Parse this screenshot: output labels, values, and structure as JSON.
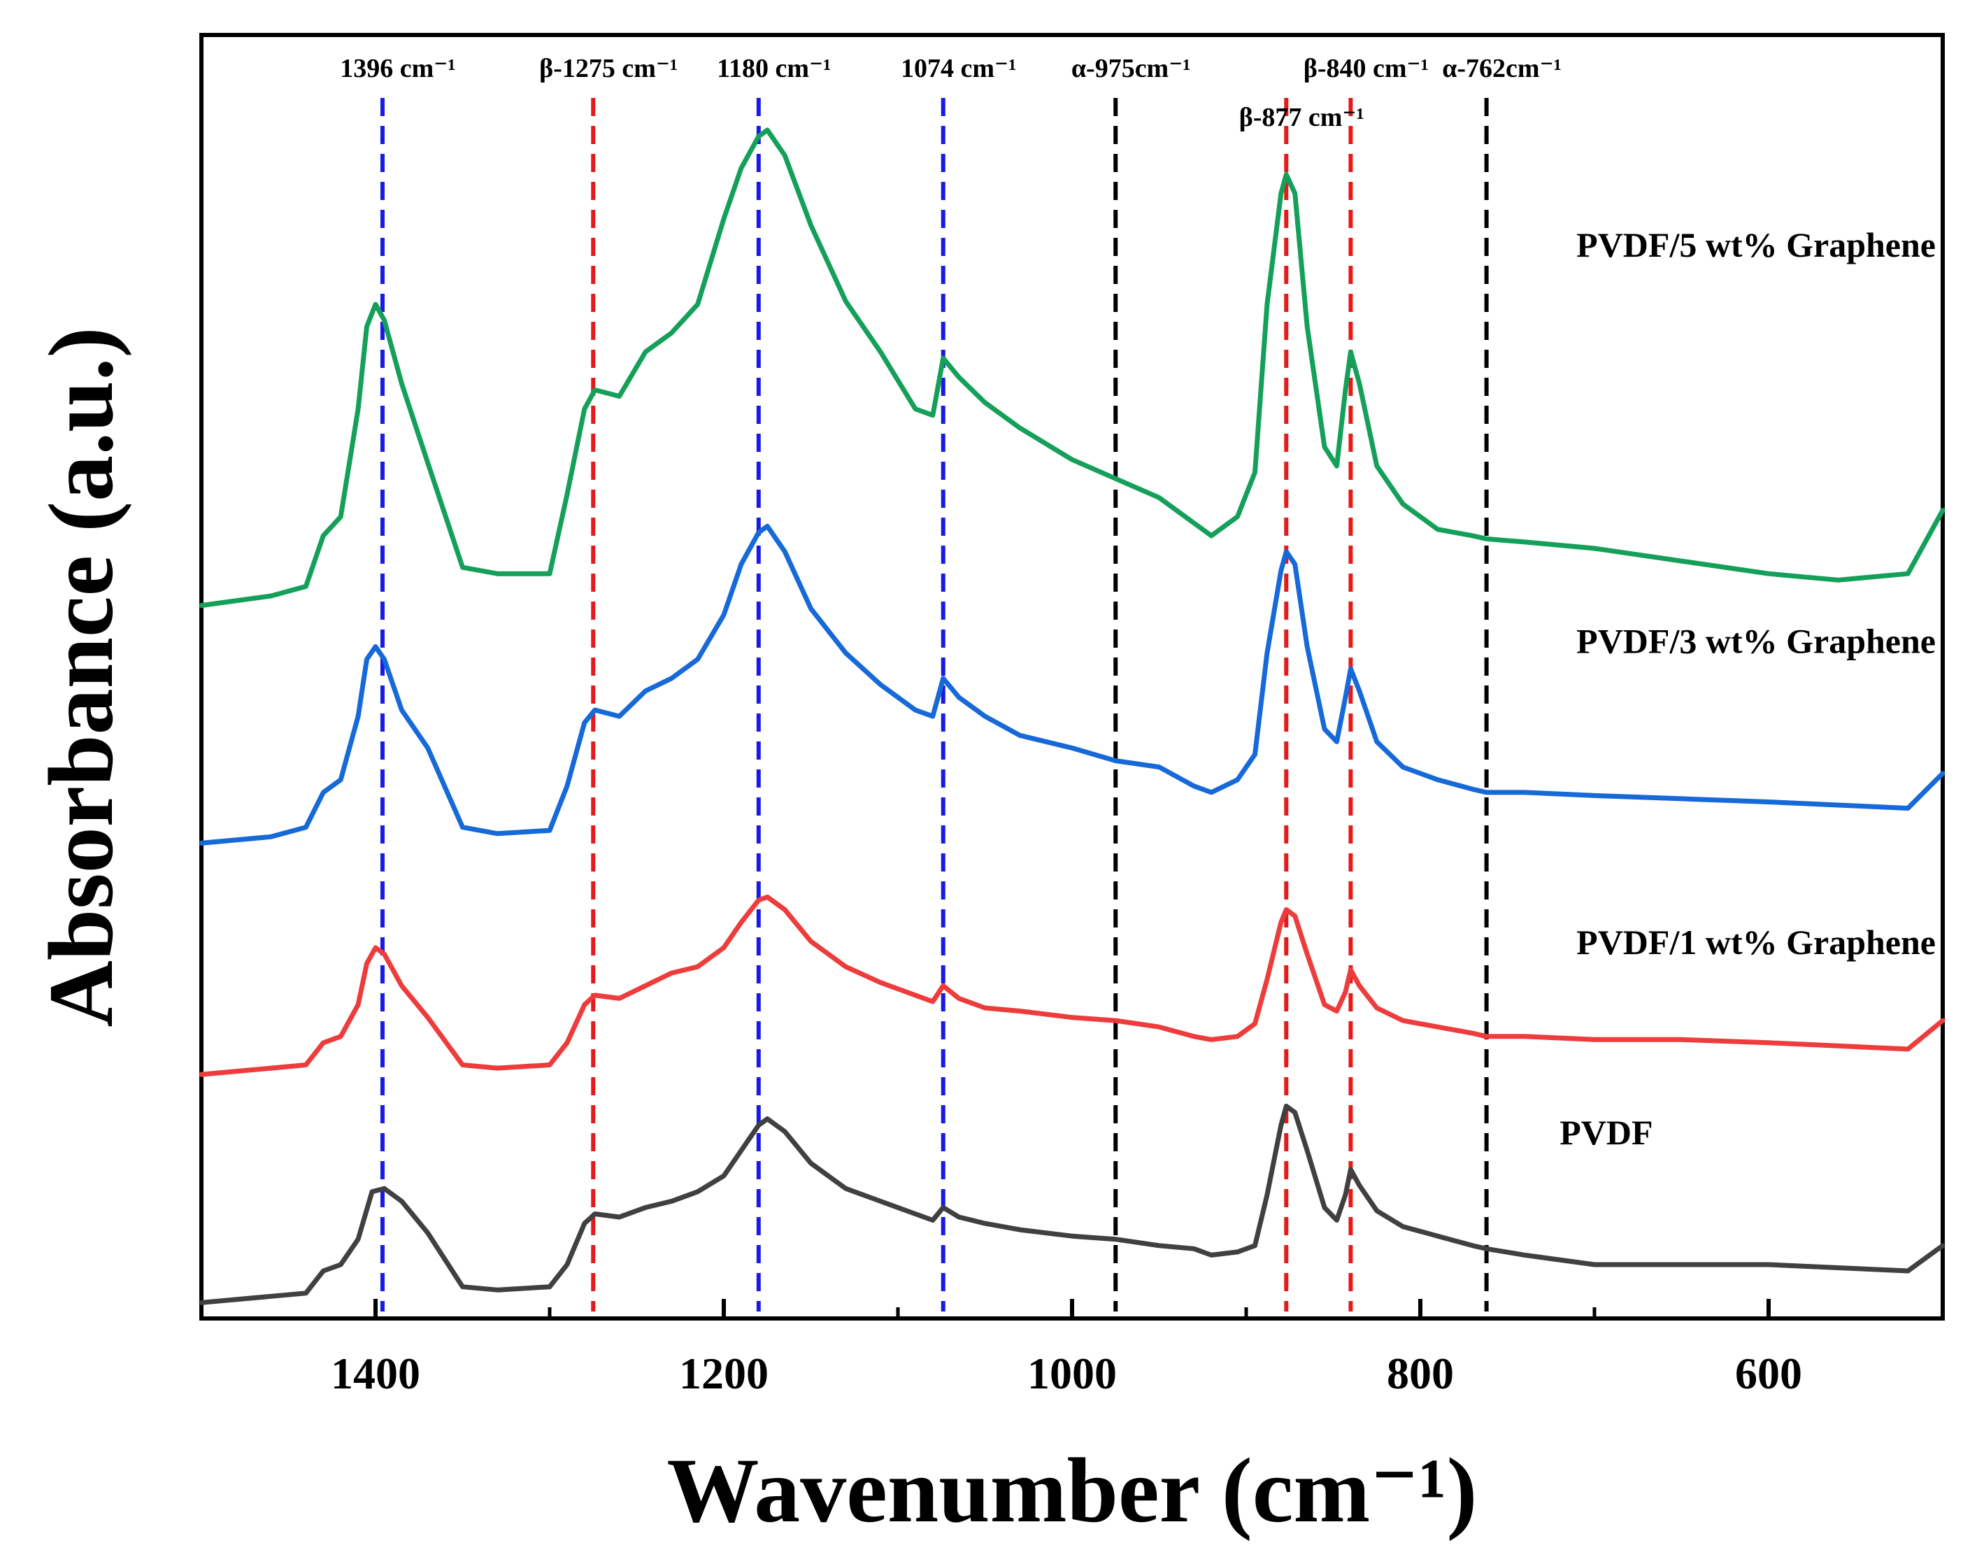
{
  "chart_data": {
    "type": "line",
    "xlabel": "Wavenumber (cm⁻¹)",
    "ylabel": "Absorbance (a.u.)",
    "xlim": [
      1500,
      500
    ],
    "x_reversed": true,
    "ylim": [
      -0.05,
      4.0
    ],
    "y_ticks_visible": false,
    "grid": false,
    "x_ticks": [
      1400,
      1200,
      1000,
      800,
      600
    ],
    "x_tick_labels": [
      "1400",
      "1200",
      "1000",
      "800",
      "600"
    ],
    "colors": {
      "PVDF": "#404040",
      "PVDF/1 wt% Graphene": "#ee3c3c",
      "PVDF/3 wt% Graphene": "#1669d8",
      "PVDF/5 wt% Graphene": "#15a05a",
      "blue_ref": "#1a1ae6",
      "red_ref": "#e61a1a",
      "black_ref": "#000000"
    },
    "series": [
      {
        "name": "PVDF",
        "color": "#404040",
        "x": [
          1500,
          1460,
          1440,
          1430,
          1420,
          1410,
          1402,
          1395,
          1385,
          1370,
          1350,
          1330,
          1300,
          1290,
          1280,
          1274,
          1260,
          1245,
          1230,
          1215,
          1200,
          1190,
          1180,
          1175,
          1165,
          1150,
          1130,
          1110,
          1090,
          1080,
          1074,
          1065,
          1050,
          1030,
          1000,
          975,
          950,
          930,
          920,
          905,
          895,
          888,
          880,
          877,
          872,
          865,
          855,
          848,
          843,
          840,
          835,
          825,
          810,
          790,
          770,
          762,
          740,
          700,
          650,
          600,
          560,
          520,
          500
        ],
        "y": [
          0.0,
          0.02,
          0.03,
          0.1,
          0.12,
          0.2,
          0.35,
          0.36,
          0.32,
          0.22,
          0.05,
          0.04,
          0.05,
          0.12,
          0.25,
          0.28,
          0.27,
          0.3,
          0.32,
          0.35,
          0.4,
          0.48,
          0.56,
          0.58,
          0.54,
          0.44,
          0.36,
          0.32,
          0.28,
          0.26,
          0.3,
          0.27,
          0.25,
          0.23,
          0.21,
          0.2,
          0.18,
          0.17,
          0.15,
          0.16,
          0.18,
          0.34,
          0.56,
          0.62,
          0.6,
          0.48,
          0.3,
          0.26,
          0.34,
          0.42,
          0.37,
          0.29,
          0.24,
          0.21,
          0.18,
          0.17,
          0.15,
          0.12,
          0.12,
          0.12,
          0.11,
          0.1,
          0.18
        ]
      },
      {
        "name": "PVDF/1 wt% Graphene",
        "color": "#ee3c3c",
        "x": [
          1500,
          1460,
          1440,
          1430,
          1420,
          1410,
          1405,
          1400,
          1395,
          1385,
          1370,
          1350,
          1330,
          1300,
          1290,
          1280,
          1274,
          1260,
          1245,
          1230,
          1215,
          1200,
          1190,
          1180,
          1175,
          1165,
          1150,
          1130,
          1110,
          1090,
          1080,
          1074,
          1065,
          1050,
          1030,
          1000,
          975,
          950,
          930,
          920,
          905,
          895,
          888,
          880,
          877,
          872,
          865,
          855,
          848,
          843,
          840,
          835,
          825,
          810,
          790,
          770,
          762,
          740,
          700,
          650,
          600,
          560,
          520,
          500
        ],
        "y": [
          0.0,
          0.02,
          0.03,
          0.1,
          0.12,
          0.22,
          0.35,
          0.4,
          0.38,
          0.28,
          0.18,
          0.03,
          0.02,
          0.03,
          0.1,
          0.22,
          0.25,
          0.24,
          0.28,
          0.32,
          0.34,
          0.4,
          0.48,
          0.55,
          0.56,
          0.52,
          0.42,
          0.34,
          0.29,
          0.25,
          0.23,
          0.28,
          0.24,
          0.21,
          0.2,
          0.18,
          0.17,
          0.15,
          0.12,
          0.11,
          0.12,
          0.16,
          0.3,
          0.48,
          0.52,
          0.5,
          0.38,
          0.22,
          0.2,
          0.26,
          0.33,
          0.28,
          0.21,
          0.17,
          0.15,
          0.13,
          0.12,
          0.12,
          0.11,
          0.11,
          0.1,
          0.09,
          0.08,
          0.17
        ]
      },
      {
        "name": "PVDF/3 wt% Graphene",
        "color": "#1669d8",
        "x": [
          1500,
          1460,
          1440,
          1430,
          1420,
          1410,
          1405,
          1400,
          1395,
          1385,
          1370,
          1350,
          1330,
          1300,
          1290,
          1280,
          1274,
          1260,
          1245,
          1230,
          1215,
          1200,
          1190,
          1180,
          1175,
          1165,
          1150,
          1130,
          1110,
          1090,
          1080,
          1074,
          1065,
          1050,
          1030,
          1000,
          975,
          950,
          930,
          920,
          905,
          895,
          888,
          880,
          877,
          872,
          865,
          855,
          848,
          843,
          840,
          835,
          825,
          810,
          790,
          770,
          762,
          740,
          700,
          650,
          600,
          560,
          520,
          500
        ],
        "y": [
          0.0,
          0.02,
          0.05,
          0.16,
          0.2,
          0.4,
          0.58,
          0.62,
          0.58,
          0.42,
          0.3,
          0.05,
          0.03,
          0.04,
          0.18,
          0.38,
          0.42,
          0.4,
          0.48,
          0.52,
          0.58,
          0.72,
          0.88,
          0.98,
          1.0,
          0.92,
          0.74,
          0.6,
          0.5,
          0.42,
          0.4,
          0.52,
          0.46,
          0.4,
          0.34,
          0.3,
          0.26,
          0.24,
          0.18,
          0.16,
          0.2,
          0.28,
          0.6,
          0.86,
          0.92,
          0.88,
          0.62,
          0.36,
          0.32,
          0.46,
          0.55,
          0.48,
          0.32,
          0.24,
          0.2,
          0.17,
          0.16,
          0.16,
          0.15,
          0.14,
          0.13,
          0.12,
          0.11,
          0.22
        ]
      },
      {
        "name": "PVDF/5 wt% Graphene",
        "color": "#15a05a",
        "x": [
          1500,
          1460,
          1440,
          1430,
          1420,
          1410,
          1405,
          1400,
          1395,
          1385,
          1370,
          1350,
          1330,
          1300,
          1290,
          1280,
          1274,
          1260,
          1245,
          1230,
          1215,
          1200,
          1190,
          1180,
          1175,
          1165,
          1150,
          1130,
          1110,
          1090,
          1080,
          1074,
          1065,
          1050,
          1030,
          1000,
          975,
          950,
          930,
          920,
          905,
          895,
          888,
          880,
          877,
          872,
          865,
          855,
          848,
          843,
          840,
          835,
          825,
          810,
          790,
          770,
          762,
          740,
          700,
          650,
          600,
          560,
          520,
          500
        ],
        "y": [
          0.0,
          0.03,
          0.06,
          0.22,
          0.28,
          0.62,
          0.88,
          0.95,
          0.9,
          0.7,
          0.45,
          0.12,
          0.1,
          0.1,
          0.35,
          0.62,
          0.68,
          0.66,
          0.8,
          0.86,
          0.95,
          1.22,
          1.38,
          1.48,
          1.5,
          1.42,
          1.2,
          0.96,
          0.8,
          0.62,
          0.6,
          0.78,
          0.72,
          0.64,
          0.56,
          0.46,
          0.4,
          0.34,
          0.26,
          0.22,
          0.28,
          0.42,
          0.95,
          1.3,
          1.36,
          1.3,
          0.88,
          0.5,
          0.44,
          0.68,
          0.8,
          0.7,
          0.44,
          0.32,
          0.24,
          0.22,
          0.21,
          0.2,
          0.18,
          0.14,
          0.1,
          0.08,
          0.1,
          0.3
        ]
      }
    ],
    "series_label_positions_data": [
      {
        "name": "PVDF",
        "x": 720,
        "y": 0.5
      },
      {
        "name": "PVDF/1 wt% Graphene",
        "x": 500,
        "y": 1.1
      },
      {
        "name": "PVDF/3 wt% Graphene",
        "x": 500,
        "y": 2.05
      },
      {
        "name": "PVDF/5 wt% Graphene",
        "x": 500,
        "y": 3.3
      }
    ],
    "offsets": {
      "PVDF": 0.0,
      "PVDF/1 wt% Graphene": 0.72,
      "PVDF/3 wt% Graphene": 1.45,
      "PVDF/5 wt% Graphene": 2.2
    },
    "reference_lines": [
      {
        "x": 1396,
        "label": "1396 cm⁻¹",
        "color_key": "blue_ref",
        "row": 0
      },
      {
        "x": 1275,
        "label": "β-1275 cm⁻¹",
        "color_key": "red_ref",
        "row": 0
      },
      {
        "x": 1180,
        "label": "1180 cm⁻¹",
        "color_key": "blue_ref",
        "row": 0
      },
      {
        "x": 1074,
        "label": "1074 cm⁻¹",
        "color_key": "blue_ref",
        "row": 0
      },
      {
        "x": 975,
        "label": "α-975cm⁻¹",
        "color_key": "black_ref",
        "row": 0
      },
      {
        "x": 877,
        "label": "β-877 cm⁻¹",
        "color_key": "red_ref",
        "row": 1
      },
      {
        "x": 840,
        "label": "β-840 cm⁻¹",
        "color_key": "red_ref",
        "row": 0
      },
      {
        "x": 762,
        "label": "α-762cm⁻¹",
        "color_key": "black_ref",
        "row": 0
      }
    ]
  }
}
